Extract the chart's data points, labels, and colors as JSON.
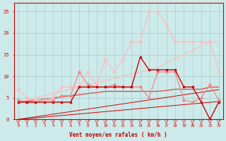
{
  "x": [
    0,
    1,
    2,
    3,
    4,
    5,
    6,
    7,
    8,
    9,
    10,
    11,
    12,
    13,
    14,
    15,
    16,
    17,
    18,
    19,
    20,
    21,
    22,
    23
  ],
  "lightest_pink_jagged": [
    7.0,
    5.0,
    4.5,
    4.5,
    5.0,
    7.5,
    7.5,
    7.5,
    11.0,
    8.0,
    14.0,
    11.0,
    14.0,
    18.0,
    18.0,
    25.0,
    25.0,
    22.0,
    18.0,
    18.0,
    18.0,
    18.0,
    18.0,
    11.0
  ],
  "medium_pink_jagged": [
    4.5,
    4.0,
    4.0,
    4.5,
    4.5,
    5.5,
    5.5,
    11.0,
    8.0,
    7.5,
    7.5,
    8.0,
    7.5,
    7.5,
    7.5,
    5.0,
    11.0,
    11.0,
    11.0,
    4.5,
    4.0,
    5.0,
    8.0,
    4.5
  ],
  "dark_red_jagged": [
    4.0,
    4.0,
    4.0,
    4.0,
    4.0,
    4.0,
    4.0,
    7.5,
    7.5,
    7.5,
    7.5,
    7.5,
    7.5,
    7.5,
    14.5,
    11.5,
    11.5,
    11.5,
    11.5,
    7.5,
    7.5,
    4.0,
    0.0,
    4.0
  ],
  "diag_upper_light": [
    4.0,
    4.5,
    5.0,
    5.5,
    6.0,
    6.5,
    7.0,
    7.5,
    8.0,
    8.5,
    9.0,
    9.5,
    10.0,
    10.5,
    11.0,
    11.5,
    12.0,
    13.0,
    14.0,
    15.0,
    16.0,
    17.0,
    18.0,
    18.0
  ],
  "diag_lower_med": [
    4.0,
    4.2,
    4.5,
    4.7,
    5.0,
    5.2,
    5.5,
    5.7,
    6.0,
    6.2,
    6.5,
    6.5,
    6.5,
    6.5,
    6.5,
    6.5,
    6.5,
    6.7,
    7.0,
    7.0,
    7.0,
    7.0,
    7.5,
    7.5
  ],
  "straight_diag1": [
    0.0,
    0.3,
    0.6,
    0.9,
    1.2,
    1.5,
    1.8,
    2.1,
    2.4,
    2.7,
    3.0,
    3.3,
    3.6,
    3.9,
    4.2,
    4.5,
    4.8,
    5.1,
    5.4,
    5.7,
    6.0,
    6.3,
    6.6,
    6.9
  ],
  "straight_diag2": [
    0.0,
    0.18,
    0.36,
    0.54,
    0.72,
    0.9,
    1.08,
    1.26,
    1.44,
    1.62,
    1.8,
    1.98,
    2.16,
    2.34,
    2.52,
    2.7,
    2.88,
    3.06,
    3.24,
    3.42,
    3.6,
    3.78,
    3.96,
    4.14
  ],
  "xlabel": "Vent moyen/en rafales ( km/h )",
  "bg_color": "#cdeaea",
  "grid_color": "#aacccc",
  "dark_red": "#cc0000",
  "medium_red": "#dd4444",
  "light_red": "#ee8888",
  "lightest_red": "#ffbbbb",
  "ylim": [
    0,
    27
  ],
  "xlim": [
    -0.5,
    23.5
  ],
  "yticks": [
    0,
    5,
    10,
    15,
    20,
    25
  ],
  "xticks": [
    0,
    1,
    2,
    3,
    4,
    5,
    6,
    7,
    8,
    9,
    10,
    11,
    12,
    13,
    14,
    15,
    16,
    17,
    18,
    19,
    20,
    21,
    22,
    23
  ]
}
